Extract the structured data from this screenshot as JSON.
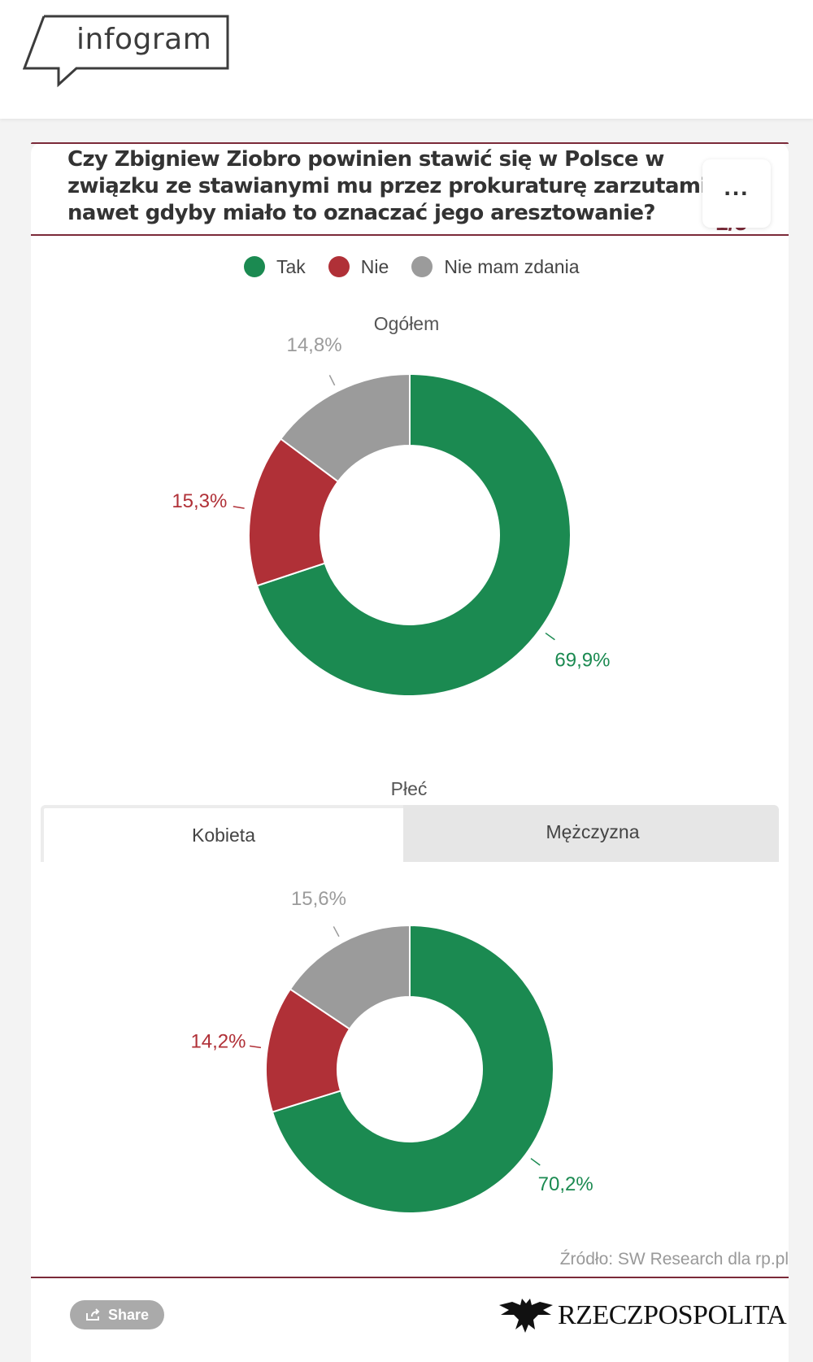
{
  "header": {
    "logo_text": "infogram"
  },
  "card": {
    "title": "Czy Zbigniew Ziobro powinien stawić się w Polsce w związku ze stawianymi mu przez prokuraturę zarzutami, nawet gdyby miało to oznaczać jego aresztowanie?",
    "page_indicator": "1/3",
    "more_label": "..."
  },
  "legend": [
    {
      "label": "Tak",
      "color": "#1b8a51"
    },
    {
      "label": "Nie",
      "color": "#b03037"
    },
    {
      "label": "Nie mam zdania",
      "color": "#9b9b9b"
    }
  ],
  "chart_data": [
    {
      "type": "pie",
      "title": "Ogółem",
      "categories": [
        "Tak",
        "Nie",
        "Nie mam zdania"
      ],
      "values": [
        69.9,
        15.3,
        14.8
      ],
      "labels": [
        "69,9%",
        "15,3%",
        "14,8%"
      ],
      "colors": [
        "#1b8a51",
        "#b03037",
        "#9b9b9b"
      ]
    },
    {
      "type": "pie",
      "title": "Płeć",
      "categories": [
        "Tak",
        "Nie",
        "Nie mam zdania"
      ],
      "values": [
        70.2,
        14.2,
        15.6
      ],
      "labels": [
        "70,2%",
        "14,2%",
        "15,6%"
      ],
      "colors": [
        "#1b8a51",
        "#b03037",
        "#9b9b9b"
      ],
      "tabs": [
        {
          "label": "Kobieta",
          "selected": true
        },
        {
          "label": "Mężczyzna",
          "selected": false
        }
      ]
    }
  ],
  "footer": {
    "source": "Źródło: SW Research dla rp.pl",
    "share_label": "Share",
    "brand": "RZECZPOSPOLITA"
  }
}
